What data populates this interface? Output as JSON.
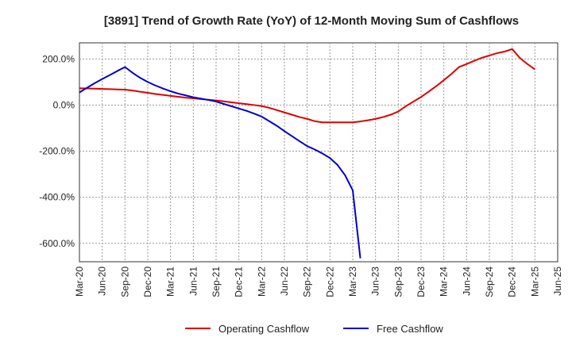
{
  "chart_data": {
    "type": "line",
    "title": "[3891]  Trend of Growth Rate (YoY) of 12-Month Moving Sum of Cashflows",
    "xlabel": "",
    "ylabel": "",
    "x_ticks": [
      "Mar-20",
      "Jun-20",
      "Sep-20",
      "Dec-20",
      "Mar-21",
      "Jun-21",
      "Sep-21",
      "Dec-21",
      "Mar-22",
      "Jun-22",
      "Sep-22",
      "Dec-22",
      "Mar-23",
      "Jun-23",
      "Sep-23",
      "Dec-23",
      "Mar-24",
      "Jun-24",
      "Sep-24",
      "Dec-24",
      "Mar-25",
      "Jun-25"
    ],
    "y_ticks": [
      200,
      0,
      -200,
      -400,
      -600
    ],
    "y_tick_labels": [
      "200.0%",
      "0.0%",
      "-200.0%",
      "-400.0%",
      "-600.0%"
    ],
    "ylim": [
      -680,
      270
    ],
    "grid": true,
    "legend_position": "bottom",
    "series": [
      {
        "name": "Operating Cashflow",
        "color": "#dd0000",
        "x": [
          "Mar-20",
          "Apr-20",
          "May-20",
          "Jun-20",
          "Jul-20",
          "Aug-20",
          "Sep-20",
          "Oct-20",
          "Nov-20",
          "Dec-20",
          "Jan-21",
          "Feb-21",
          "Mar-21",
          "Apr-21",
          "May-21",
          "Jun-21",
          "Jul-21",
          "Aug-21",
          "Sep-21",
          "Oct-21",
          "Nov-21",
          "Dec-21",
          "Jan-22",
          "Feb-22",
          "Mar-22",
          "Apr-22",
          "May-22",
          "Jun-22",
          "Jul-22",
          "Aug-22",
          "Sep-22",
          "Oct-22",
          "Nov-22",
          "Dec-22",
          "Jan-23",
          "Feb-23",
          "Mar-23",
          "Apr-23",
          "May-23",
          "Jun-23",
          "Jul-23",
          "Aug-23",
          "Sep-23",
          "Oct-23",
          "Nov-23",
          "Dec-23",
          "Jan-24",
          "Feb-24",
          "Mar-24",
          "Apr-24",
          "May-24",
          "Jun-24",
          "Jul-24",
          "Aug-24",
          "Sep-24",
          "Oct-24",
          "Nov-24",
          "Dec-24",
          "Jan-25",
          "Feb-25",
          "Mar-25"
        ],
        "values": [
          73,
          72,
          71,
          70,
          69,
          68,
          67,
          63,
          58,
          53,
          48,
          44,
          40,
          36,
          32,
          29,
          26,
          23,
          20,
          16,
          12,
          8,
          4,
          0,
          -4,
          -12,
          -22,
          -32,
          -42,
          -52,
          -60,
          -70,
          -75,
          -75,
          -75,
          -75,
          -75,
          -71,
          -66,
          -60,
          -52,
          -42,
          -28,
          -5,
          15,
          35,
          58,
          82,
          108,
          135,
          165,
          178,
          192,
          205,
          215,
          225,
          232,
          243,
          205,
          178,
          155
        ]
      },
      {
        "name": "Free Cashflow",
        "color": "#0000cc",
        "x": [
          "Mar-20",
          "Apr-20",
          "May-20",
          "Jun-20",
          "Jul-20",
          "Aug-20",
          "Sep-20",
          "Oct-20",
          "Nov-20",
          "Dec-20",
          "Jan-21",
          "Feb-21",
          "Mar-21",
          "Apr-21",
          "May-21",
          "Jun-21",
          "Jul-21",
          "Aug-21",
          "Sep-21",
          "Oct-21",
          "Nov-21",
          "Dec-21",
          "Jan-22",
          "Feb-22",
          "Mar-22",
          "Apr-22",
          "May-22",
          "Jun-22",
          "Jul-22",
          "Aug-22",
          "Sep-22",
          "Oct-22",
          "Nov-22",
          "Dec-22",
          "Jan-23",
          "Feb-23",
          "Mar-23",
          "Apr-23"
        ],
        "values": [
          55,
          75,
          95,
          113,
          130,
          148,
          165,
          140,
          118,
          100,
          85,
          72,
          60,
          50,
          42,
          34,
          28,
          22,
          15,
          5,
          -5,
          -15,
          -25,
          -37,
          -50,
          -70,
          -90,
          -113,
          -135,
          -157,
          -178,
          -193,
          -210,
          -230,
          -260,
          -305,
          -370,
          -665
        ]
      }
    ]
  }
}
